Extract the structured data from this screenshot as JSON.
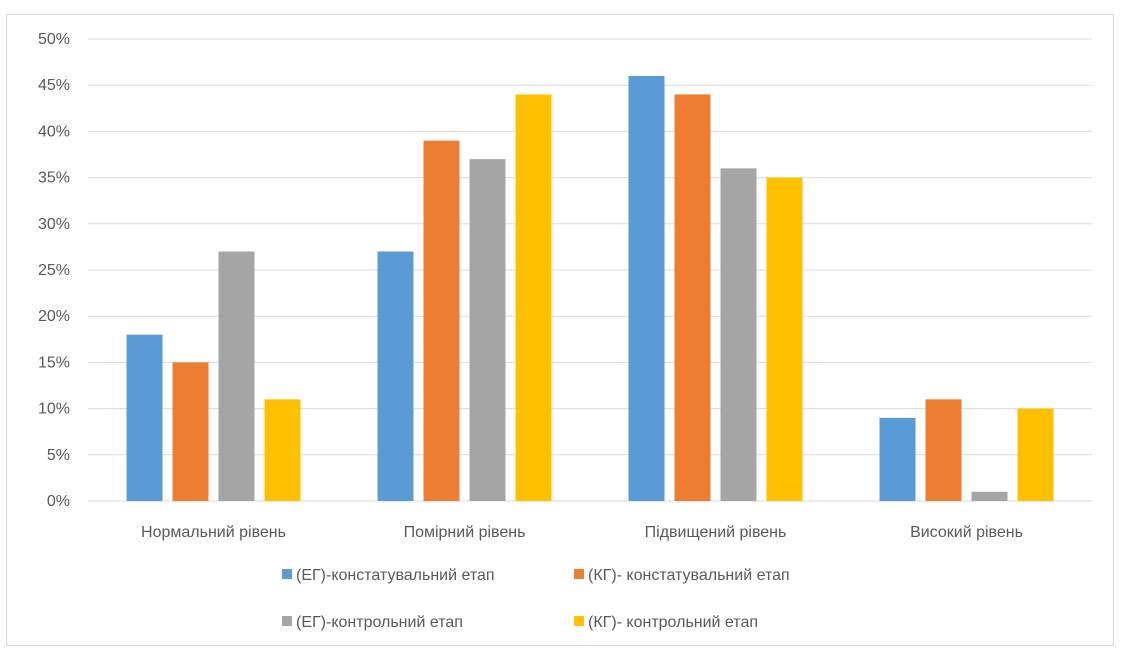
{
  "chart_data": {
    "type": "bar",
    "categories": [
      "Нормальний рівень",
      "Помірний рівень",
      "Підвищений рівень",
      "Високий рівень"
    ],
    "series": [
      {
        "name": "(ЕГ)-констатувальний етап",
        "color": "#5b9bd5",
        "values": [
          18,
          27,
          46,
          9
        ]
      },
      {
        "name": "(КГ)- констатувальний етап",
        "color": "#ed7d31",
        "values": [
          15,
          39,
          44,
          11
        ]
      },
      {
        "name": "(ЕГ)-контрольний етап",
        "color": "#a5a5a5",
        "values": [
          27,
          37,
          36,
          1
        ]
      },
      {
        "name": "(КГ)- контрольний етап",
        "color": "#ffc000",
        "values": [
          11,
          44,
          35,
          10
        ]
      }
    ],
    "yticks": [
      "0%",
      "5%",
      "10%",
      "15%",
      "20%",
      "25%",
      "30%",
      "35%",
      "40%",
      "45%",
      "50%"
    ],
    "ylim": [
      0,
      50
    ],
    "unit": "%",
    "grid": true,
    "legend_position": "bottom"
  }
}
